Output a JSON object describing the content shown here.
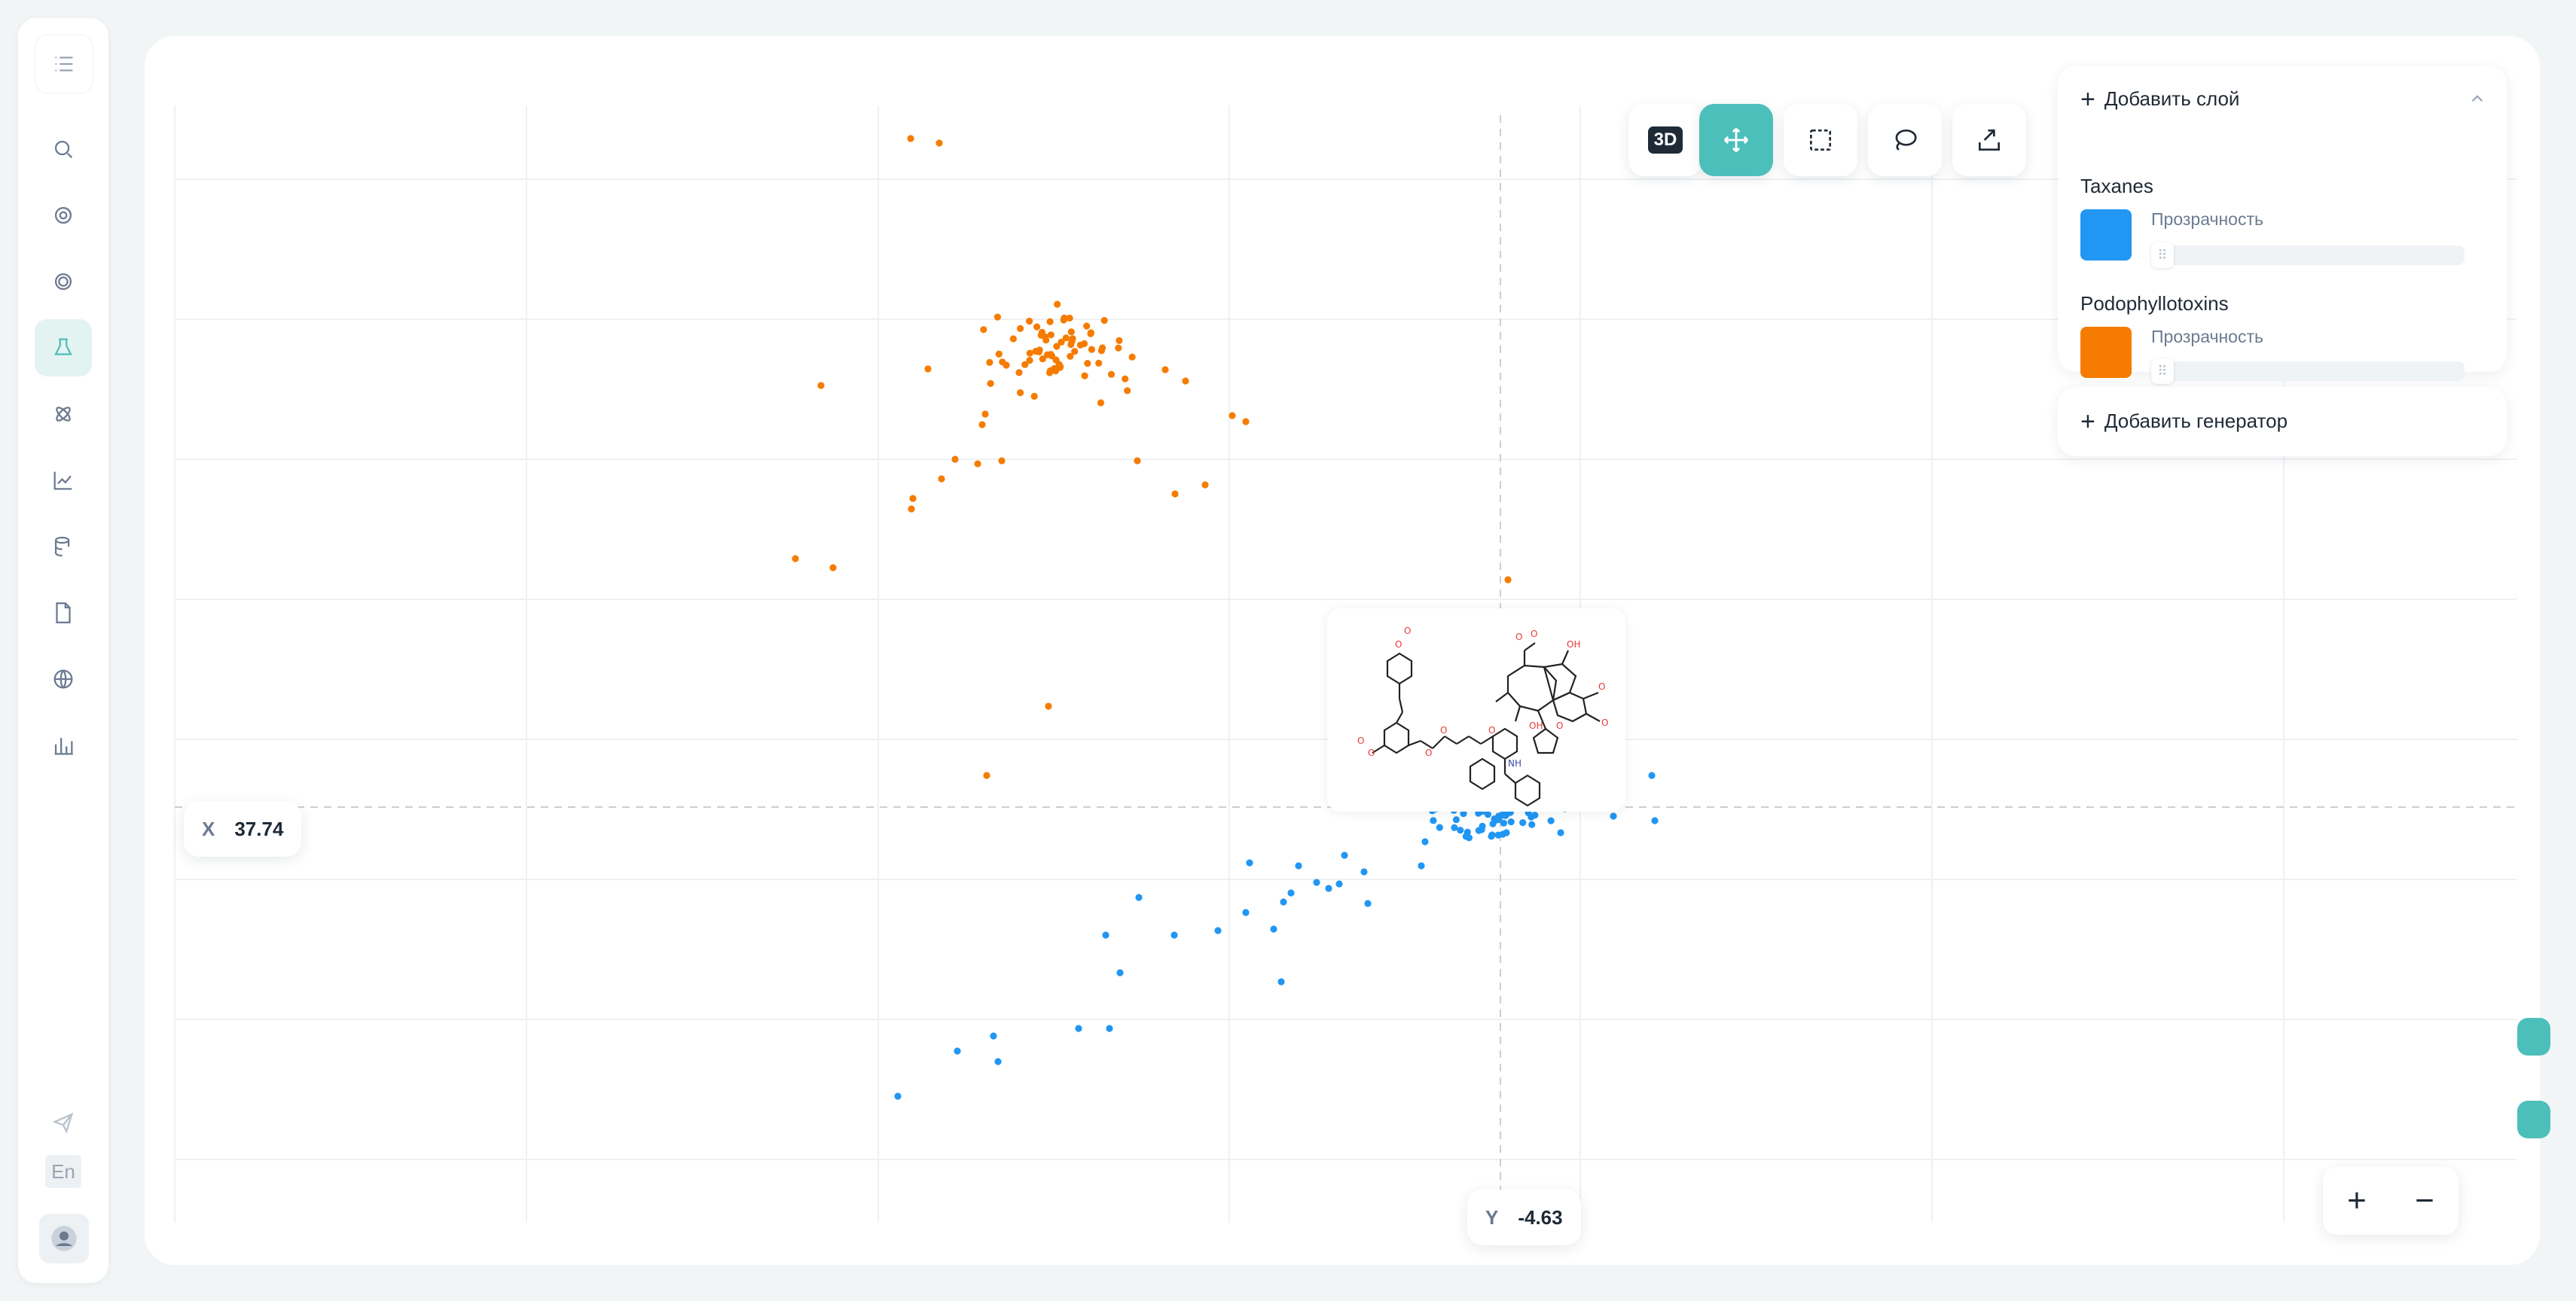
{
  "sidebar": {
    "items": [
      {
        "icon": "list-icon",
        "active": false
      },
      {
        "icon": "search-icon",
        "active": false
      },
      {
        "icon": "contrast-icon",
        "active": false
      },
      {
        "icon": "target-icon",
        "active": false
      },
      {
        "icon": "flask-icon",
        "active": true
      },
      {
        "icon": "atom-icon",
        "active": false
      },
      {
        "icon": "line-chart-icon",
        "active": false
      },
      {
        "icon": "database-icon",
        "active": false
      },
      {
        "icon": "document-icon",
        "active": false
      },
      {
        "icon": "globe-icon",
        "active": false
      },
      {
        "icon": "bar-chart-icon",
        "active": false
      }
    ],
    "language": "En",
    "bottom_icons": [
      "send-icon",
      "user-icon"
    ]
  },
  "toolbar": {
    "mode_3d_label": "3D",
    "tools": [
      "move-icon",
      "rect-select-icon",
      "lasso-icon",
      "export-icon"
    ],
    "active_tool": "move-icon"
  },
  "layers_panel": {
    "add_layer_label": "Добавить слой",
    "layers": [
      {
        "name": "Taxanes",
        "color": "#2196f3",
        "opacity_label": "Прозрачность"
      },
      {
        "name": "Podophyllotoxins",
        "color": "#f57c00",
        "opacity_label": "Прозрачность"
      }
    ],
    "add_generator_label": "Добавить генератор"
  },
  "crosshair": {
    "x_axis_label": "X",
    "x_value": "37.74",
    "y_axis_label": "Y",
    "y_value": "-4.63"
  },
  "zoom": {
    "in_label": "+",
    "out_label": "−"
  },
  "colors": {
    "accent": "#4cbfbb",
    "taxanes": "#2196f3",
    "podophyllotoxins": "#f57c00"
  }
}
